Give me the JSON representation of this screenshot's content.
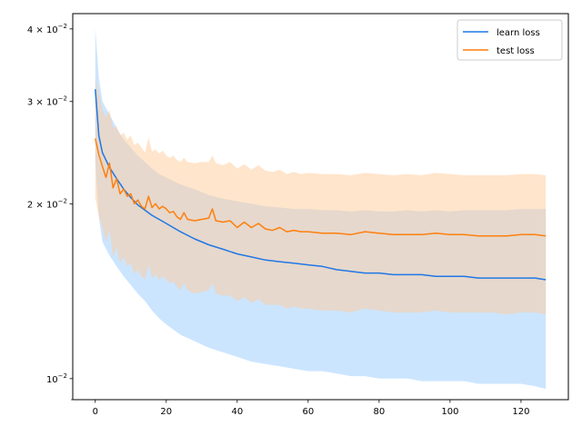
{
  "chart_data": {
    "type": "line",
    "title": "",
    "xlabel": "",
    "ylabel": "",
    "yscale": "log",
    "xlim": [
      -6.35,
      133.35
    ],
    "ylim": [
      0.0092,
      0.0425
    ],
    "grid": false,
    "legend_position": "top-right",
    "x_ticks": [
      0,
      20,
      40,
      60,
      80,
      100,
      120
    ],
    "x_tick_labels": [
      "0",
      "20",
      "40",
      "60",
      "80",
      "100",
      "120"
    ],
    "y_ticks": [
      0.01,
      0.02,
      0.03,
      0.04
    ],
    "y_tick_labels": [
      {
        "base": "10",
        "exp": "−2"
      },
      {
        "base": "2 × 10",
        "exp": "−2"
      },
      {
        "base": "3 × 10",
        "exp": "−2"
      },
      {
        "base": "4 × 10",
        "exp": "−2"
      }
    ],
    "series": [
      {
        "name": "learn loss",
        "color": "#1f77e5",
        "band_color": "#99ccff",
        "x": [
          0,
          1,
          2,
          4,
          6,
          8,
          10,
          12,
          14,
          16,
          18,
          20,
          24,
          28,
          32,
          36,
          40,
          44,
          48,
          52,
          56,
          60,
          64,
          68,
          72,
          76,
          80,
          84,
          88,
          92,
          96,
          100,
          104,
          108,
          112,
          116,
          120,
          124,
          127
        ],
        "mean": [
          0.0315,
          0.0262,
          0.0245,
          0.0231,
          0.0221,
          0.0212,
          0.0205,
          0.0199,
          0.0195,
          0.0191,
          0.0188,
          0.0185,
          0.0179,
          0.0174,
          0.017,
          0.0167,
          0.0164,
          0.0162,
          0.016,
          0.0159,
          0.0158,
          0.0157,
          0.0156,
          0.0154,
          0.0153,
          0.0152,
          0.0152,
          0.0151,
          0.0151,
          0.0151,
          0.015,
          0.015,
          0.015,
          0.0149,
          0.0149,
          0.0149,
          0.0149,
          0.0149,
          0.0148
        ],
        "upper": [
          0.04,
          0.033,
          0.03,
          0.0285,
          0.027,
          0.0258,
          0.025,
          0.0242,
          0.0236,
          0.023,
          0.0225,
          0.0222,
          0.0216,
          0.0212,
          0.0207,
          0.0204,
          0.0202,
          0.02,
          0.0198,
          0.0197,
          0.0196,
          0.0196,
          0.0195,
          0.0195,
          0.0194,
          0.0195,
          0.0194,
          0.0194,
          0.0195,
          0.0194,
          0.0195,
          0.0194,
          0.0195,
          0.0195,
          0.0195,
          0.0195,
          0.0196,
          0.0196,
          0.0196
        ],
        "lower": [
          0.0236,
          0.019,
          0.0172,
          0.0163,
          0.0156,
          0.015,
          0.0145,
          0.014,
          0.0136,
          0.0131,
          0.0127,
          0.0124,
          0.0119,
          0.0116,
          0.0113,
          0.0111,
          0.0109,
          0.0107,
          0.0106,
          0.0105,
          0.0104,
          0.0103,
          0.0103,
          0.0102,
          0.0101,
          0.0101,
          0.01,
          0.01,
          0.01,
          0.0099,
          0.0099,
          0.0099,
          0.0099,
          0.0098,
          0.0098,
          0.0098,
          0.0098,
          0.0097,
          0.0096
        ]
      },
      {
        "name": "test loss",
        "color": "#ff7f0e",
        "band_color": "#ffcc99",
        "x": [
          0,
          1,
          2,
          3,
          4,
          5,
          6,
          7,
          8,
          9,
          10,
          11,
          12,
          13,
          14,
          15,
          16,
          17,
          18,
          19,
          20,
          21,
          22,
          23,
          24,
          25,
          26,
          28,
          30,
          32,
          33,
          34,
          36,
          38,
          40,
          42,
          44,
          46,
          48,
          50,
          52,
          54,
          56,
          58,
          60,
          64,
          68,
          72,
          76,
          80,
          84,
          88,
          92,
          96,
          100,
          104,
          108,
          112,
          116,
          120,
          124,
          127
        ],
        "mean": [
          0.0259,
          0.0243,
          0.0232,
          0.0222,
          0.0235,
          0.0213,
          0.0221,
          0.0208,
          0.0212,
          0.0206,
          0.0208,
          0.02,
          0.0203,
          0.0198,
          0.0196,
          0.0206,
          0.0197,
          0.02,
          0.0196,
          0.0198,
          0.0196,
          0.0193,
          0.0194,
          0.019,
          0.0188,
          0.0193,
          0.0188,
          0.0187,
          0.0188,
          0.0189,
          0.0196,
          0.0187,
          0.0186,
          0.0187,
          0.0182,
          0.0186,
          0.0182,
          0.0185,
          0.0181,
          0.018,
          0.0182,
          0.0179,
          0.018,
          0.0179,
          0.0179,
          0.0178,
          0.0178,
          0.0177,
          0.0179,
          0.0178,
          0.0177,
          0.0177,
          0.0177,
          0.0178,
          0.0177,
          0.0177,
          0.0176,
          0.0176,
          0.0176,
          0.0177,
          0.0177,
          0.0176
        ],
        "upper": [
          0.033,
          0.031,
          0.029,
          0.0282,
          0.029,
          0.027,
          0.0272,
          0.0262,
          0.0265,
          0.0258,
          0.0262,
          0.0252,
          0.0255,
          0.025,
          0.0245,
          0.026,
          0.0246,
          0.0248,
          0.0244,
          0.0247,
          0.0242,
          0.024,
          0.0242,
          0.0238,
          0.0236,
          0.024,
          0.0236,
          0.0235,
          0.0236,
          0.0236,
          0.0242,
          0.0235,
          0.0233,
          0.0236,
          0.023,
          0.0234,
          0.0229,
          0.0233,
          0.0228,
          0.0227,
          0.0229,
          0.0225,
          0.0227,
          0.0225,
          0.0226,
          0.0225,
          0.0225,
          0.0224,
          0.0226,
          0.0225,
          0.0224,
          0.0225,
          0.0224,
          0.0226,
          0.0225,
          0.0224,
          0.0224,
          0.0224,
          0.0224,
          0.0225,
          0.0225,
          0.0224
        ],
        "lower": [
          0.0205,
          0.019,
          0.0182,
          0.0172,
          0.018,
          0.0162,
          0.0168,
          0.0158,
          0.0162,
          0.0156,
          0.0158,
          0.0151,
          0.0154,
          0.015,
          0.0148,
          0.0157,
          0.0149,
          0.0151,
          0.0148,
          0.015,
          0.0148,
          0.0146,
          0.0147,
          0.0144,
          0.0142,
          0.0146,
          0.0142,
          0.014,
          0.0141,
          0.0142,
          0.0146,
          0.014,
          0.0139,
          0.0139,
          0.0136,
          0.0138,
          0.0135,
          0.0137,
          0.0134,
          0.0134,
          0.0134,
          0.0132,
          0.0133,
          0.0132,
          0.0132,
          0.0131,
          0.0131,
          0.013,
          0.0132,
          0.0131,
          0.013,
          0.013,
          0.013,
          0.0131,
          0.013,
          0.013,
          0.013,
          0.013,
          0.0129,
          0.013,
          0.013,
          0.0129
        ]
      }
    ]
  }
}
